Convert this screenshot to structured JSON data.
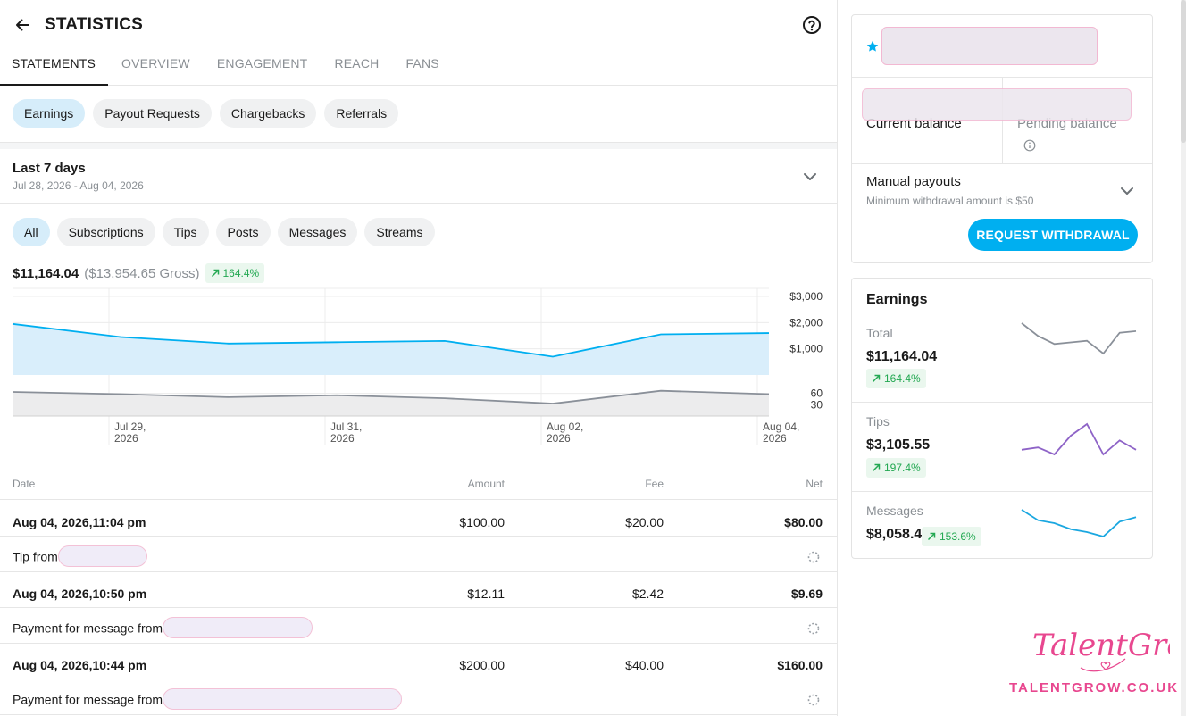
{
  "header": {
    "title": "STATISTICS"
  },
  "tabs": [
    {
      "label": "STATEMENTS"
    },
    {
      "label": "OVERVIEW"
    },
    {
      "label": "ENGAGEMENT"
    },
    {
      "label": "REACH"
    },
    {
      "label": "FANS"
    }
  ],
  "statement_types": [
    {
      "label": "Earnings"
    },
    {
      "label": "Payout Requests"
    },
    {
      "label": "Chargebacks"
    },
    {
      "label": "Referrals"
    }
  ],
  "period": {
    "label": "Last 7 days",
    "range": "Jul 28, 2026 - Aug 04, 2026"
  },
  "filters": [
    {
      "label": "All"
    },
    {
      "label": "Subscriptions"
    },
    {
      "label": "Tips"
    },
    {
      "label": "Posts"
    },
    {
      "label": "Messages"
    },
    {
      "label": "Streams"
    }
  ],
  "summary": {
    "net": "$11,164.04",
    "gross": "($13,954.65 Gross)",
    "change": "164.4%"
  },
  "chart_data": {
    "type": "area",
    "x": [
      "Jul 28, 2026",
      "Jul 29, 2026",
      "Jul 30, 2026",
      "Jul 31, 2026",
      "Aug 01, 2026",
      "Aug 02, 2026",
      "Aug 03, 2026",
      "Aug 04, 2026"
    ],
    "x_tick_labels": [
      {
        "line1": "Jul 29,",
        "line2": "2026"
      },
      {
        "line1": "Jul 31,",
        "line2": "2026"
      },
      {
        "line1": "Aug 02,",
        "line2": "2026"
      },
      {
        "line1": "Aug 04,",
        "line2": "2026"
      }
    ],
    "series": [
      {
        "values": [
          1950,
          1450,
          1200,
          1250,
          1300,
          700,
          1550,
          1600
        ]
      },
      {
        "values": [
          64,
          58,
          50,
          55,
          47,
          33,
          67,
          58
        ]
      }
    ],
    "y_ticks_top": [
      "$3,000",
      "$2,000",
      "$1,000"
    ],
    "y_ticks_bottom": [
      "60",
      "30"
    ],
    "ylim_top": [
      0,
      3000
    ],
    "ylim_bottom": [
      0,
      90
    ],
    "colors": {
      "earnings": "#00aff0",
      "fill": "#d9eefb",
      "count": "#8a9099",
      "count_fill": "#ececed"
    }
  },
  "table": {
    "headers": {
      "date": "Date",
      "amount": "Amount",
      "fee": "Fee",
      "net": "Net"
    },
    "rows": [
      {
        "date": "Aug 04, 2026,11:04 pm",
        "amount": "$100.00",
        "fee": "$20.00",
        "net": "$80.00",
        "description": "Tip from"
      },
      {
        "date": "Aug 04, 2026,10:50 pm",
        "amount": "$12.11",
        "fee": "$2.42",
        "net": "$9.69",
        "description": "Payment for message from"
      },
      {
        "date": "Aug 04, 2026,10:44 pm",
        "amount": "$200.00",
        "fee": "$40.00",
        "net": "$160.00",
        "description": "Payment for message from"
      }
    ]
  },
  "balance_card": {
    "current_label": "Current balance",
    "pending_label": "Pending balance",
    "manual_payouts": "Manual payouts",
    "min_withdrawal": "Minimum withdrawal amount is $50",
    "button": "REQUEST WITHDRAWAL"
  },
  "earnings_card": {
    "title": "Earnings",
    "items": [
      {
        "label": "Total",
        "value": "$11,164.04",
        "change": "164.4%",
        "color": "#8a9099",
        "spark": [
          22,
          14,
          9,
          10,
          11,
          3,
          16,
          17
        ]
      },
      {
        "label": "Tips",
        "value": "$3,105.55",
        "change": "197.4%",
        "color": "#8e63c7",
        "spark": [
          8,
          9,
          6,
          14,
          19,
          6,
          12,
          8
        ]
      },
      {
        "label": "Messages",
        "value": "$8,058.49",
        "change": "153.6%",
        "color": "#1aa7e0",
        "spark": [
          24,
          17,
          15,
          11,
          9,
          6,
          16,
          19
        ]
      }
    ]
  },
  "watermark": {
    "url": "TALENTGROW.CO.UK"
  }
}
